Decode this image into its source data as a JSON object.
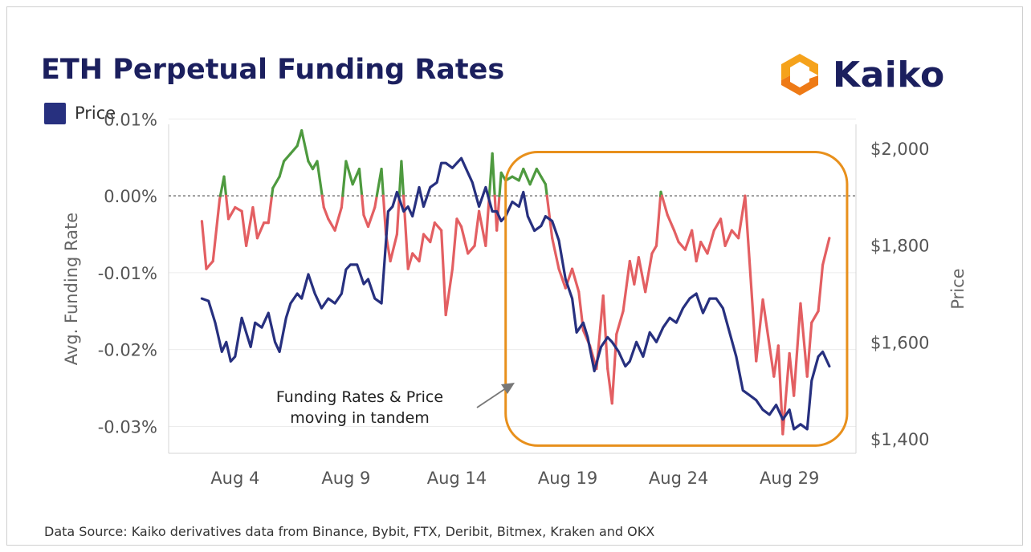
{
  "title": "ETH Perpetual Funding Rates",
  "legend": {
    "label": "Price",
    "color": "#27307f"
  },
  "logo": {
    "text": "Kaiko"
  },
  "source": "Data Source: Kaiko derivatives data from Binance, Bybit, FTX, Deribit, Bitmex, Kraken and OKX",
  "annotation": {
    "lines": [
      "Funding Rates & Price",
      "moving in tandem"
    ]
  },
  "colors": {
    "positive": "#4e9a3f",
    "negative": "#e35f62",
    "price": "#27307f",
    "box": "#e8901c"
  },
  "chart_data": {
    "type": "line",
    "x_ticks": [
      "Aug 4",
      "Aug 9",
      "Aug 14",
      "Aug 19",
      "Aug 24",
      "Aug 29"
    ],
    "x_tick_days": [
      4,
      9,
      14,
      19,
      24,
      29
    ],
    "x_range": [
      1,
      32
    ],
    "left_axis": {
      "label": "Avg. Funding Rate",
      "ticks": [
        "0.01%",
        "0.00%",
        "-0.01%",
        "-0.02%",
        "-0.03%"
      ],
      "tick_values": [
        0.01,
        0,
        -0.01,
        -0.02,
        -0.03
      ],
      "range": [
        -0.0335,
        0.0093
      ]
    },
    "right_axis": {
      "label": "Price",
      "ticks": [
        "$2,000",
        "$1,800",
        "$1,600",
        "$1,400"
      ],
      "tick_values": [
        2000,
        1800,
        1600,
        1400
      ],
      "range": [
        1370,
        2050
      ]
    },
    "series": [
      {
        "name": "",
        "axis": "left",
        "color_rule": "green above 0, red below 0",
        "x": [
          2.5,
          2.7,
          3.0,
          3.3,
          3.5,
          3.7,
          4.0,
          4.3,
          4.5,
          4.8,
          5.0,
          5.3,
          5.5,
          5.7,
          6.0,
          6.2,
          6.5,
          6.8,
          7.0,
          7.3,
          7.5,
          7.7,
          8.0,
          8.2,
          8.5,
          8.8,
          9.0,
          9.3,
          9.6,
          9.8,
          10.0,
          10.3,
          10.6,
          10.8,
          11.0,
          11.3,
          11.5,
          11.8,
          12.0,
          12.3,
          12.5,
          12.8,
          13.0,
          13.3,
          13.5,
          13.8,
          14.0,
          14.2,
          14.5,
          14.8,
          15.0,
          15.3,
          15.6,
          15.8,
          16.0,
          16.2,
          16.5,
          16.8,
          17.0,
          17.3,
          17.6,
          17.8,
          18.0,
          18.3,
          18.6,
          18.9,
          19.2,
          19.5,
          19.7,
          20.0,
          20.3,
          20.6,
          20.8,
          21.0,
          21.2,
          21.5,
          21.8,
          22.0,
          22.2,
          22.5,
          22.8,
          23.0,
          23.2,
          23.5,
          23.8,
          24.0,
          24.3,
          24.6,
          24.8,
          25.0,
          25.3,
          25.6,
          25.9,
          26.1,
          26.4,
          26.7,
          27.0,
          27.2,
          27.5,
          27.8,
          28.0,
          28.3,
          28.5,
          28.7,
          29.0,
          29.2,
          29.5,
          29.8,
          30.0,
          30.3,
          30.5,
          30.8
        ],
        "values": [
          -0.0033,
          -0.0095,
          -0.0085,
          -0.0005,
          0.0025,
          -0.003,
          -0.0015,
          -0.002,
          -0.0065,
          -0.0015,
          -0.0055,
          -0.0035,
          -0.0035,
          0.001,
          0.0025,
          0.0045,
          0.0055,
          0.0065,
          0.0085,
          0.0045,
          0.0035,
          0.0045,
          -0.0015,
          -0.003,
          -0.0045,
          -0.0015,
          0.0045,
          0.0015,
          0.0035,
          -0.0025,
          -0.004,
          -0.0015,
          0.0035,
          -0.005,
          -0.0085,
          -0.005,
          0.0045,
          -0.0095,
          -0.0075,
          -0.0085,
          -0.005,
          -0.006,
          -0.0035,
          -0.0045,
          -0.0155,
          -0.0095,
          -0.003,
          -0.004,
          -0.0075,
          -0.0065,
          -0.002,
          -0.0065,
          0.0055,
          -0.0045,
          0.003,
          0.002,
          0.0025,
          0.002,
          0.0035,
          0.0015,
          0.0035,
          0.0025,
          0.0015,
          -0.0055,
          -0.0095,
          -0.012,
          -0.0095,
          -0.0125,
          -0.0175,
          -0.0195,
          -0.0225,
          -0.013,
          -0.0225,
          -0.027,
          -0.018,
          -0.015,
          -0.0085,
          -0.0115,
          -0.008,
          -0.0125,
          -0.0075,
          -0.0065,
          0.0005,
          -0.0025,
          -0.0045,
          -0.006,
          -0.007,
          -0.0045,
          -0.0085,
          -0.006,
          -0.0075,
          -0.0045,
          -0.003,
          -0.0065,
          -0.0045,
          -0.0055,
          0.0,
          -0.0085,
          -0.0215,
          -0.0135,
          -0.0175,
          -0.0235,
          -0.0195,
          -0.031,
          -0.0205,
          -0.026,
          -0.014,
          -0.0235,
          -0.0165,
          -0.015,
          -0.009,
          -0.0055
        ]
      },
      {
        "name": "Price",
        "axis": "right",
        "x": [
          2.5,
          2.8,
          3.1,
          3.4,
          3.6,
          3.8,
          4.0,
          4.3,
          4.5,
          4.7,
          4.9,
          5.2,
          5.5,
          5.8,
          6.0,
          6.3,
          6.5,
          6.8,
          7.0,
          7.3,
          7.6,
          7.9,
          8.2,
          8.5,
          8.8,
          9.0,
          9.2,
          9.5,
          9.8,
          10.0,
          10.3,
          10.6,
          10.9,
          11.1,
          11.3,
          11.6,
          11.8,
          12.0,
          12.3,
          12.5,
          12.8,
          13.1,
          13.3,
          13.5,
          13.8,
          14.0,
          14.2,
          14.4,
          14.7,
          15.0,
          15.3,
          15.6,
          15.8,
          16.0,
          16.2,
          16.5,
          16.8,
          17.0,
          17.2,
          17.5,
          17.8,
          18.0,
          18.3,
          18.6,
          18.9,
          19.2,
          19.4,
          19.7,
          19.9,
          20.2,
          20.5,
          20.8,
          21.0,
          21.3,
          21.6,
          21.8,
          22.1,
          22.4,
          22.7,
          23.0,
          23.3,
          23.6,
          23.9,
          24.2,
          24.5,
          24.8,
          25.1,
          25.4,
          25.7,
          26.0,
          26.3,
          26.6,
          26.9,
          27.2,
          27.5,
          27.8,
          28.1,
          28.4,
          28.7,
          29.0,
          29.2,
          29.5,
          29.8,
          30.0,
          30.3,
          30.5,
          30.8
        ],
        "values": [
          1690,
          1685,
          1640,
          1580,
          1600,
          1560,
          1570,
          1650,
          1620,
          1590,
          1640,
          1630,
          1660,
          1600,
          1580,
          1650,
          1680,
          1700,
          1690,
          1740,
          1700,
          1670,
          1690,
          1680,
          1700,
          1750,
          1760,
          1760,
          1720,
          1730,
          1690,
          1680,
          1870,
          1880,
          1910,
          1870,
          1880,
          1860,
          1920,
          1880,
          1920,
          1930,
          1970,
          1970,
          1960,
          1970,
          1980,
          1960,
          1930,
          1880,
          1920,
          1870,
          1870,
          1850,
          1860,
          1890,
          1880,
          1910,
          1860,
          1830,
          1840,
          1860,
          1850,
          1810,
          1730,
          1690,
          1620,
          1640,
          1610,
          1540,
          1590,
          1610,
          1600,
          1580,
          1550,
          1560,
          1600,
          1570,
          1620,
          1600,
          1630,
          1650,
          1640,
          1670,
          1690,
          1700,
          1660,
          1690,
          1690,
          1670,
          1620,
          1570,
          1500,
          1490,
          1480,
          1460,
          1450,
          1470,
          1440,
          1460,
          1420,
          1430,
          1420,
          1520,
          1570,
          1580,
          1550
        ]
      }
    ],
    "reference_line": {
      "axis": "left",
      "value": 0
    },
    "highlight_box": {
      "x": [
        16.2,
        31.6
      ],
      "y_left": [
        -0.0325,
        0.0057
      ]
    },
    "grid": true
  }
}
